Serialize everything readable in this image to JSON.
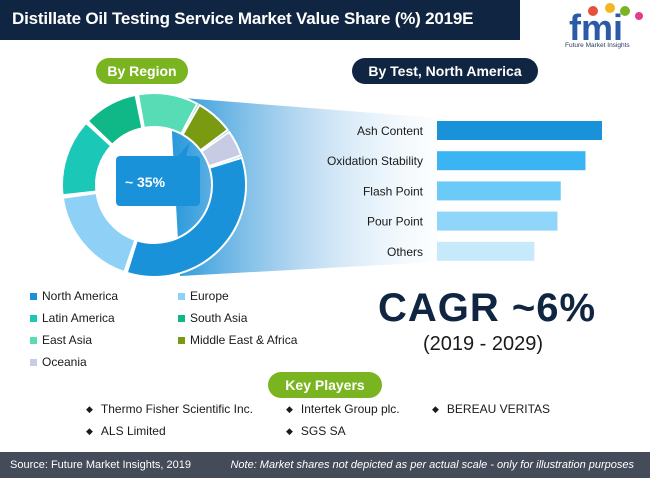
{
  "title": "Distillate Oil Testing Service Market Value Share (%) 2019E",
  "logo": {
    "letters": "fmi",
    "tagline": "Future Market Insights"
  },
  "region_heading": "By Region",
  "test_heading": "By Test, North America",
  "callout": "~ 35%",
  "cagr": {
    "label": "CAGR ~6%",
    "period": "(2019 - 2029)"
  },
  "key_players_heading": "Key Players",
  "key_players": [
    "Thermo Fisher Scientific Inc.",
    "Intertek Group plc.",
    "BEREAU VERITAS",
    "ALS Limited",
    "SGS SA"
  ],
  "footer": {
    "source": "Source: Future Market Insights, 2019",
    "note": "Note: Market shares not depicted as per actual scale - only for illustration purposes"
  },
  "colors": {
    "navy": "#0f2542",
    "green_accent": "#7ab521",
    "footer_bg": "#434c58"
  },
  "chart_data": [
    {
      "type": "pie",
      "title": "By Region",
      "note": "Market shares not depicted as per actual scale; only North America labeled (~35%)",
      "categories": [
        "North America",
        "Europe",
        "Latin America",
        "South Asia",
        "East Asia",
        "Middle East & Africa",
        "Oceania"
      ],
      "values": [
        35,
        18,
        14,
        10,
        11,
        7,
        5
      ],
      "colors": [
        "#1a92d9",
        "#8fd0f7",
        "#1bc7b7",
        "#10b887",
        "#58dcb5",
        "#7a9a12",
        "#c7cbe3"
      ],
      "legend_placement": "bottom"
    },
    {
      "type": "bar",
      "orientation": "horizontal",
      "title": "By Test, North America",
      "categories": [
        "Ash Content",
        "Oxidation Stability",
        "Flash Point",
        "Pour Point",
        "Others"
      ],
      "values": [
        100,
        90,
        75,
        73,
        59
      ],
      "scale": "relative (no axis values shown)",
      "colors": [
        "#1a92d9",
        "#3ab4f2",
        "#6ccaf8",
        "#8fd6fa",
        "#c6e9fb"
      ]
    }
  ]
}
